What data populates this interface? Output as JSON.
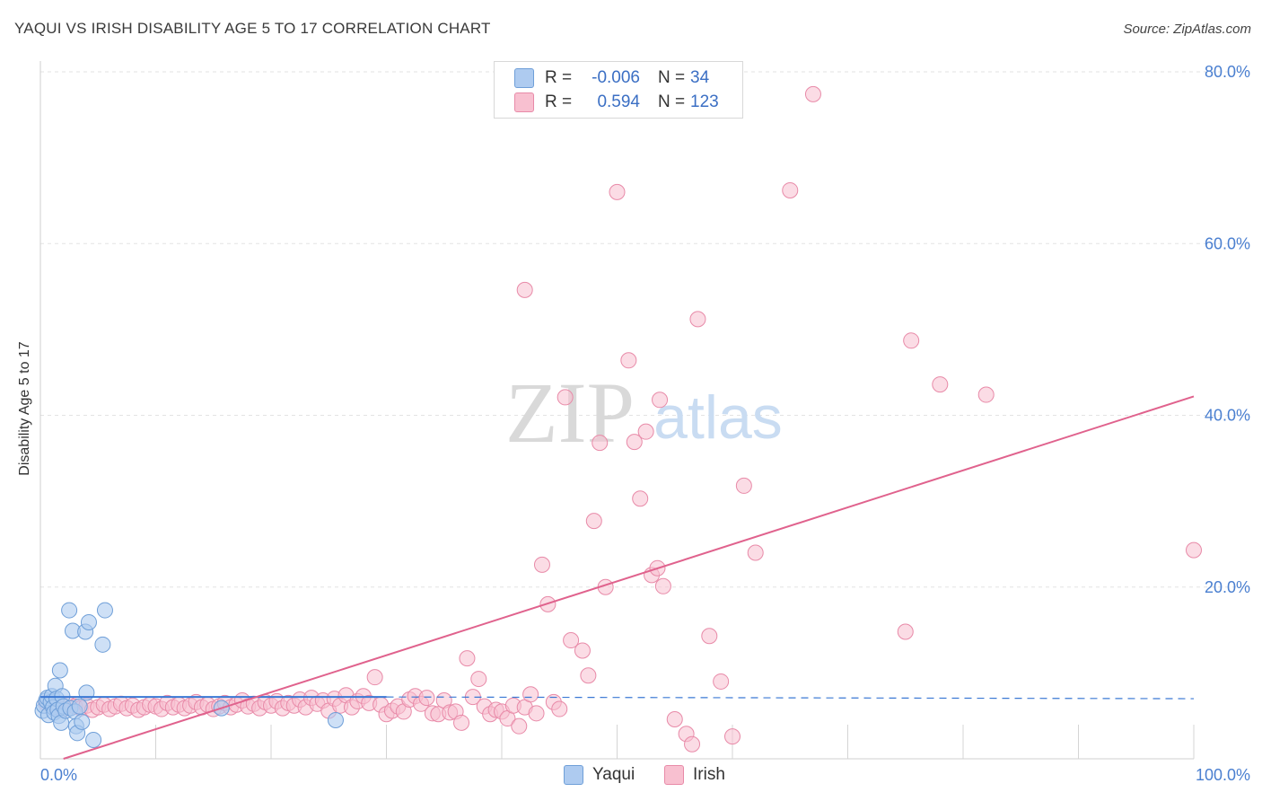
{
  "header": {
    "title": "YAQUI VS IRISH DISABILITY AGE 5 TO 17 CORRELATION CHART",
    "source": "Source: ZipAtlas.com"
  },
  "legend": {
    "rows": [
      {
        "r_label": "R =",
        "r_value": "-0.006",
        "n_label": "N =",
        "n_value": "34"
      },
      {
        "r_label": "R =",
        "r_value": "0.594",
        "n_label": "N =",
        "n_value": "123"
      }
    ]
  },
  "bottom_legend": {
    "yaqui": "Yaqui",
    "irish": "Irish"
  },
  "watermark": {
    "zip": "ZIP",
    "atlas": "atlas"
  },
  "colors": {
    "yaqui_fill": "#aecbf0",
    "yaqui_stroke": "#6f9fd8",
    "yaqui_line": "#3a78d4",
    "irish_fill": "#f8c0d0",
    "irish_stroke": "#e88aa8",
    "irish_line": "#e0628d",
    "tick_label": "#4a7fd0",
    "grid": "#e3e3e3"
  },
  "chart_data": {
    "type": "scatter",
    "title": "YAQUI VS IRISH DISABILITY AGE 5 TO 17 CORRELATION CHART",
    "xlabel": "",
    "ylabel": "Disability Age 5 to 17",
    "xlim": [
      0,
      100
    ],
    "ylim": [
      0,
      80
    ],
    "x_tick_labels": [
      "0.0%",
      "100.0%"
    ],
    "y_ticks": [
      20,
      40,
      60,
      80
    ],
    "y_tick_labels": [
      "20.0%",
      "40.0%",
      "60.0%",
      "80.0%"
    ],
    "series": [
      {
        "name": "Yaqui",
        "r": -0.006,
        "n": 34,
        "trend": {
          "x0": 0,
          "y0": 7.2,
          "x1": 30,
          "y1": 7.2,
          "dashed_to": 100,
          "dashed_y": 7.0
        },
        "points": [
          [
            0.2,
            5.6
          ],
          [
            0.3,
            6.2
          ],
          [
            0.5,
            6.8
          ],
          [
            0.6,
            7.1
          ],
          [
            0.7,
            5.1
          ],
          [
            0.9,
            6.6
          ],
          [
            1.0,
            7.3
          ],
          [
            1.1,
            6.0
          ],
          [
            1.2,
            5.4
          ],
          [
            1.3,
            8.5
          ],
          [
            1.4,
            7.0
          ],
          [
            1.5,
            5.7
          ],
          [
            1.6,
            5.0
          ],
          [
            1.7,
            10.3
          ],
          [
            1.8,
            4.2
          ],
          [
            1.9,
            7.3
          ],
          [
            2.0,
            6.1
          ],
          [
            2.2,
            5.6
          ],
          [
            2.5,
            17.3
          ],
          [
            2.6,
            5.9
          ],
          [
            2.8,
            14.9
          ],
          [
            3.0,
            5.5
          ],
          [
            3.1,
            3.8
          ],
          [
            3.2,
            3.0
          ],
          [
            3.4,
            6.1
          ],
          [
            3.6,
            4.3
          ],
          [
            3.9,
            14.8
          ],
          [
            4.0,
            7.7
          ],
          [
            4.2,
            15.9
          ],
          [
            4.6,
            2.2
          ],
          [
            5.4,
            13.3
          ],
          [
            5.6,
            17.3
          ],
          [
            15.7,
            5.9
          ],
          [
            25.6,
            4.5
          ]
        ]
      },
      {
        "name": "Irish",
        "r": 0.594,
        "n": 123,
        "trend": {
          "x0": 2,
          "y0": 0,
          "x1": 100,
          "y1": 42.2
        },
        "points": [
          [
            0.5,
            6.5
          ],
          [
            1.0,
            6.2
          ],
          [
            1.5,
            6.0
          ],
          [
            2.0,
            5.8
          ],
          [
            2.5,
            6.3
          ],
          [
            3.0,
            6.1
          ],
          [
            3.5,
            5.9
          ],
          [
            4.0,
            6.2
          ],
          [
            4.5,
            5.7
          ],
          [
            5.0,
            6.0
          ],
          [
            5.5,
            6.3
          ],
          [
            6.0,
            5.8
          ],
          [
            6.5,
            6.1
          ],
          [
            7.0,
            6.4
          ],
          [
            7.5,
            5.9
          ],
          [
            8.0,
            6.2
          ],
          [
            8.5,
            5.7
          ],
          [
            9.0,
            6.0
          ],
          [
            9.5,
            6.3
          ],
          [
            10.0,
            6.1
          ],
          [
            10.5,
            5.8
          ],
          [
            11.0,
            6.5
          ],
          [
            11.5,
            6.0
          ],
          [
            12.0,
            6.3
          ],
          [
            12.5,
            5.9
          ],
          [
            13.0,
            6.2
          ],
          [
            13.5,
            6.6
          ],
          [
            14.0,
            6.0
          ],
          [
            14.5,
            6.3
          ],
          [
            15.0,
            5.8
          ],
          [
            15.5,
            6.1
          ],
          [
            16.0,
            6.5
          ],
          [
            16.5,
            6.0
          ],
          [
            17.0,
            6.3
          ],
          [
            17.5,
            6.8
          ],
          [
            18.0,
            6.1
          ],
          [
            18.5,
            6.4
          ],
          [
            19.0,
            5.9
          ],
          [
            19.5,
            6.6
          ],
          [
            20.0,
            6.2
          ],
          [
            20.5,
            6.7
          ],
          [
            21.0,
            5.9
          ],
          [
            21.5,
            6.5
          ],
          [
            22.0,
            6.2
          ],
          [
            22.5,
            6.9
          ],
          [
            23.0,
            6.0
          ],
          [
            23.5,
            7.1
          ],
          [
            24.0,
            6.4
          ],
          [
            24.5,
            6.8
          ],
          [
            25.0,
            5.6
          ],
          [
            25.5,
            7.0
          ],
          [
            26.0,
            6.2
          ],
          [
            26.5,
            7.4
          ],
          [
            27.0,
            6.0
          ],
          [
            27.5,
            6.7
          ],
          [
            28.0,
            7.3
          ],
          [
            28.5,
            6.5
          ],
          [
            29.0,
            9.5
          ],
          [
            29.5,
            6.3
          ],
          [
            30.0,
            5.2
          ],
          [
            30.5,
            5.6
          ],
          [
            31.0,
            6.1
          ],
          [
            31.5,
            5.5
          ],
          [
            32.0,
            6.9
          ],
          [
            32.5,
            7.3
          ],
          [
            33.0,
            6.4
          ],
          [
            33.5,
            7.1
          ],
          [
            34.0,
            5.3
          ],
          [
            34.5,
            5.2
          ],
          [
            35.0,
            6.8
          ],
          [
            35.5,
            5.4
          ],
          [
            36.0,
            5.5
          ],
          [
            36.5,
            4.2
          ],
          [
            37.0,
            11.7
          ],
          [
            37.5,
            7.2
          ],
          [
            38.0,
            9.3
          ],
          [
            38.5,
            6.1
          ],
          [
            39.0,
            5.2
          ],
          [
            39.5,
            5.7
          ],
          [
            40.0,
            5.5
          ],
          [
            40.5,
            4.7
          ],
          [
            41.0,
            6.2
          ],
          [
            41.5,
            3.8
          ],
          [
            42.0,
            6.0
          ],
          [
            42.5,
            7.5
          ],
          [
            43.0,
            5.3
          ],
          [
            43.5,
            22.6
          ],
          [
            44.0,
            18.0
          ],
          [
            44.5,
            6.6
          ],
          [
            45.0,
            5.8
          ],
          [
            45.5,
            42.1
          ],
          [
            46.0,
            13.8
          ],
          [
            47.0,
            12.6
          ],
          [
            47.5,
            9.7
          ],
          [
            48.0,
            27.7
          ],
          [
            48.5,
            36.8
          ],
          [
            49.0,
            20.0
          ],
          [
            50.0,
            66.0
          ],
          [
            51.0,
            46.4
          ],
          [
            51.5,
            36.9
          ],
          [
            52.0,
            30.3
          ],
          [
            52.5,
            38.1
          ],
          [
            53.0,
            21.4
          ],
          [
            53.5,
            22.2
          ],
          [
            54.0,
            20.1
          ],
          [
            55.0,
            4.6
          ],
          [
            56.0,
            2.9
          ],
          [
            56.5,
            1.7
          ],
          [
            57.0,
            51.2
          ],
          [
            58.0,
            14.3
          ],
          [
            59.0,
            9.0
          ],
          [
            60.0,
            2.6
          ],
          [
            61.0,
            31.8
          ],
          [
            62.0,
            24.0
          ],
          [
            65.0,
            66.2
          ],
          [
            67.0,
            77.4
          ],
          [
            75.0,
            14.8
          ],
          [
            75.5,
            48.7
          ],
          [
            78.0,
            43.6
          ],
          [
            82.0,
            42.4
          ],
          [
            100.0,
            24.3
          ],
          [
            42.0,
            54.6
          ],
          [
            53.7,
            41.8
          ]
        ]
      }
    ]
  }
}
